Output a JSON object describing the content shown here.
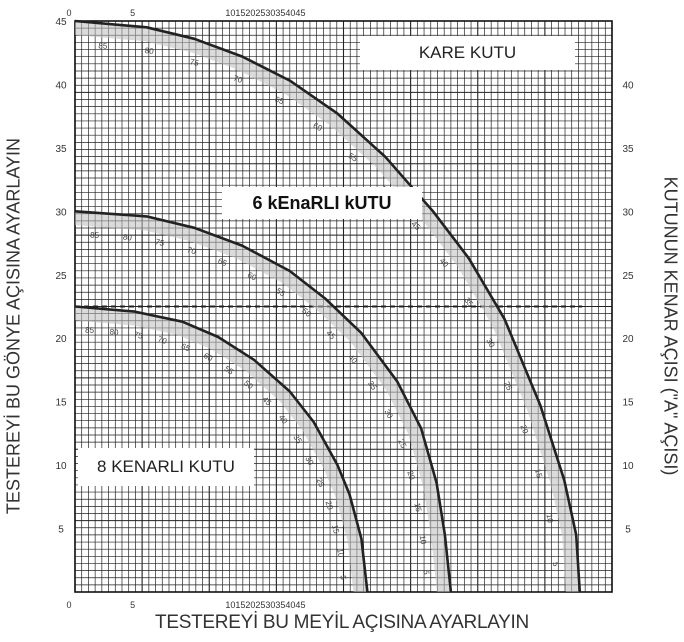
{
  "chart_data": {
    "type": "line",
    "title": "",
    "xlabel": "TESTEREYİ BU MEYİL AÇISINA AYARLAYIN",
    "ylabel": "TESTEREYİ BU GÖNYE AÇISINA AYARLAYIN",
    "y2label": "KUTUNUN KENAR AÇISI (\"A\" AÇISI)",
    "xlim": [
      0,
      45
    ],
    "ylim": [
      0,
      45
    ],
    "y2lim": [
      0,
      45
    ],
    "grid": true,
    "x_ticks": [
      "0",
      "5",
      "10",
      "15",
      "20",
      "25",
      "30",
      "35",
      "40",
      "45"
    ],
    "x_ticks_printed": [
      "0",
      "5",
      "1015202530354045"
    ],
    "y_ticks": [
      "5",
      "10",
      "15",
      "20",
      "25",
      "30",
      "35",
      "40",
      "45"
    ],
    "y2_ticks": [
      "5",
      "10",
      "15",
      "20",
      "25",
      "30",
      "35",
      "40"
    ],
    "reference_lines": [
      {
        "y": 22.5,
        "style": "dashed"
      }
    ],
    "series": [
      {
        "name": "KARE KUTU",
        "points": [
          [
            0,
            45
          ],
          [
            6,
            44.5
          ],
          [
            10,
            43.6
          ],
          [
            14,
            42.2
          ],
          [
            18,
            40.3
          ],
          [
            22,
            37.7
          ],
          [
            26,
            34.3
          ],
          [
            30,
            30.0
          ],
          [
            33,
            26.3
          ],
          [
            36,
            21.5
          ],
          [
            39,
            14.7
          ],
          [
            41,
            8.8
          ],
          [
            42,
            4.5
          ],
          [
            42.3,
            0
          ]
        ],
        "edge_angle_labels": [
          "85",
          "80",
          "75",
          "70",
          "65",
          "60",
          "55",
          "50",
          "45",
          "40",
          "35",
          "30",
          "25",
          "20",
          "15",
          "10",
          "5"
        ]
      },
      {
        "name": "6 kEnaRLI kUTU",
        "points": [
          [
            0,
            30
          ],
          [
            6,
            29.6
          ],
          [
            10,
            28.7
          ],
          [
            14,
            27.3
          ],
          [
            18,
            25.3
          ],
          [
            21,
            23.1
          ],
          [
            24,
            20.4
          ],
          [
            27,
            16.6
          ],
          [
            29,
            12.9
          ],
          [
            30.3,
            8.6
          ],
          [
            31,
            4.5
          ],
          [
            31.5,
            0
          ]
        ],
        "edge_angle_labels": [
          "85",
          "80",
          "75",
          "70",
          "65",
          "60",
          "55",
          "50",
          "45",
          "40",
          "35",
          "30",
          "25",
          "20",
          "15",
          "10",
          "5"
        ]
      },
      {
        "name": "8 KENARLI KUTU",
        "points": [
          [
            0,
            22.5
          ],
          [
            5,
            22.1
          ],
          [
            9,
            21.3
          ],
          [
            12,
            20.1
          ],
          [
            15,
            18.3
          ],
          [
            18,
            15.8
          ],
          [
            20,
            13.4
          ],
          [
            22,
            10.0
          ],
          [
            23,
            7.7
          ],
          [
            24,
            4.2
          ],
          [
            24.5,
            0
          ]
        ],
        "edge_angle_labels": [
          "85",
          "80",
          "75",
          "70",
          "65",
          "60",
          "55",
          "50",
          "45",
          "40",
          "35",
          "30",
          "25",
          "20",
          "15",
          "10",
          "5"
        ]
      }
    ]
  }
}
